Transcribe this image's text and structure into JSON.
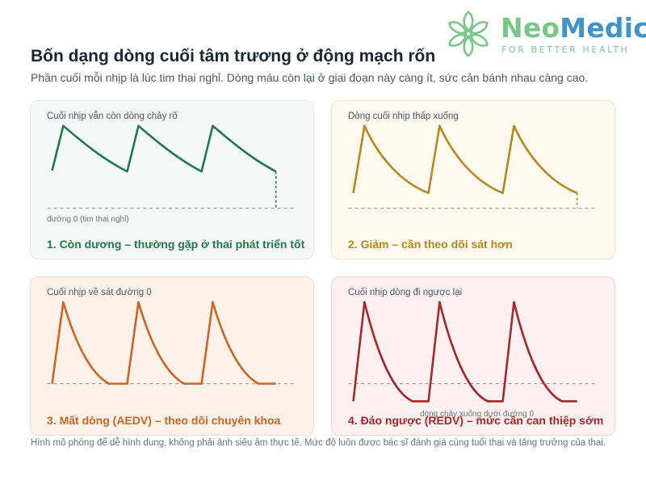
{
  "logo": {
    "brand_part1": "Neo",
    "brand_part2": "Medic",
    "tagline": "FOR BETTER HEALTH"
  },
  "title": "Bốn dạng dòng cuối tâm trương ở động mạch rốn",
  "subtitle": "Phần cuối mỗi nhịp là lúc tim thai nghỉ. Dòng máu còn lại ở giai đoạn này càng ít, sức cản bánh nhau càng cao.",
  "colors": {
    "positive": "#1f7a4a",
    "reduced": "#b8861b",
    "absent": "#cf6322",
    "reversed": "#a82626",
    "baseline": "#9aa3ad"
  },
  "panels": [
    {
      "id": "positive",
      "note": "Cuối nhịp vẫn còn dòng chảy rõ",
      "caption": "1. Còn dương – thường gặp ở thai phát triển tốt",
      "baseline_label": "đường 0 (tim thai nghỉ)"
    },
    {
      "id": "reduced",
      "note": "Dòng cuối nhịp thấp xuống",
      "caption": "2. Giảm – cần theo dõi sát hơn"
    },
    {
      "id": "absent",
      "note": "Cuối nhịp về sát đường 0",
      "caption": "3. Mất dòng (AEDV) – theo dõi chuyên khoa"
    },
    {
      "id": "reversed",
      "note": "Cuối nhịp dòng đi ngược lại",
      "caption": "4. Đảo ngược (REDV) – mức cần can thiệp sớm",
      "below_label": "dòng chảy xuống dưới đường 0"
    }
  ],
  "footer": "Hình mô phỏng để dễ hình dung, không phải ảnh siêu âm thực tế. Mức độ luôn được bác sĩ đánh giá cùng tuổi thai và tăng trưởng của thai."
}
